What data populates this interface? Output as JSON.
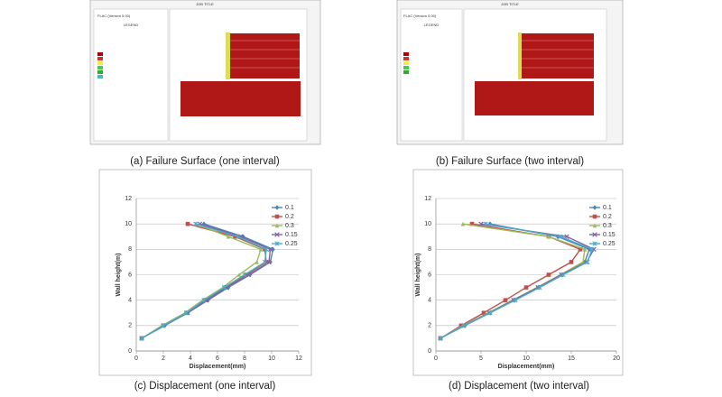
{
  "figures": [
    {
      "job_title": "JOB TITLE",
      "header": "FLAC (Version 5.00)",
      "legend_title": "LEGEND",
      "caption": "(a) Failure Surface (one interval)"
    },
    {
      "job_title": "JOB TITLE",
      "header": "FLAC (Version 5.00)",
      "legend_title": "LEGEND",
      "caption": "(b)  Failure Surface (two interval)"
    }
  ],
  "chart_data": [
    {
      "type": "line",
      "caption": "(c) Displacement (one interval)",
      "xlabel": "Displacement(mm)",
      "ylabel": "Wall height(m)",
      "xlim": [
        0,
        12
      ],
      "xticks": [
        0,
        2,
        4,
        6,
        8,
        10,
        12
      ],
      "ylim": [
        0,
        12
      ],
      "yticks": [
        0,
        2,
        4,
        6,
        8,
        10,
        12
      ],
      "grid": true,
      "legend": "upper right",
      "y": [
        1,
        2,
        3,
        4,
        5,
        6,
        7,
        8,
        9,
        10
      ],
      "series": [
        {
          "name": "0.1",
          "color": "#4f81bd",
          "marker": "diamond",
          "x": [
            0.4,
            2.1,
            3.8,
            5.3,
            6.8,
            8.4,
            9.9,
            10.1,
            7.9,
            5.0
          ]
        },
        {
          "name": "0.2",
          "color": "#c0504d",
          "marker": "square",
          "x": [
            0.4,
            2.0,
            3.7,
            5.1,
            6.6,
            8.1,
            9.6,
            9.5,
            7.3,
            3.8
          ]
        },
        {
          "name": "0.3",
          "color": "#9bbb59",
          "marker": "triangle",
          "x": [
            0.4,
            1.9,
            3.6,
            4.9,
            6.4,
            7.6,
            8.9,
            9.2,
            6.8,
            4.4
          ]
        },
        {
          "name": "0.15",
          "color": "#8064a2",
          "marker": "x",
          "x": [
            0.4,
            2.0,
            3.8,
            5.2,
            6.7,
            8.3,
            9.8,
            9.9,
            7.7,
            4.7
          ]
        },
        {
          "name": "0.25",
          "color": "#4bacc6",
          "marker": "star",
          "x": [
            0.4,
            2.0,
            3.7,
            5.0,
            6.5,
            8.0,
            9.5,
            9.6,
            7.5,
            4.4
          ]
        }
      ]
    },
    {
      "type": "line",
      "caption": "(d) Displacement (two interval)",
      "xlabel": "Displacement(mm)",
      "ylabel": "Wall height(m)",
      "xlim": [
        0,
        20
      ],
      "xticks": [
        0,
        5,
        10,
        15,
        20
      ],
      "ylim": [
        0,
        12
      ],
      "yticks": [
        0,
        2,
        4,
        6,
        8,
        10,
        12
      ],
      "grid": true,
      "legend": "upper right",
      "y": [
        1,
        2,
        3,
        4,
        5,
        6,
        7,
        8,
        9,
        10
      ],
      "series": [
        {
          "name": "0.1",
          "color": "#4f81bd",
          "marker": "diamond",
          "x": [
            0.5,
            3.2,
            6.0,
            8.7,
            11.4,
            14.0,
            16.5,
            17.0,
            13.5,
            6.0
          ]
        },
        {
          "name": "0.2",
          "color": "#c0504d",
          "marker": "square",
          "x": [
            0.5,
            2.8,
            5.3,
            7.7,
            10.0,
            12.5,
            15.0,
            16.0,
            12.5,
            4.0
          ]
        },
        {
          "name": "0.3",
          "color": "#9bbb59",
          "marker": "triangle",
          "x": [
            0.5,
            3.0,
            5.8,
            8.5,
            11.2,
            13.8,
            16.3,
            16.5,
            12.5,
            3.0
          ]
        },
        {
          "name": "0.15",
          "color": "#8064a2",
          "marker": "x",
          "x": [
            0.5,
            3.1,
            5.9,
            8.6,
            11.3,
            13.9,
            16.7,
            17.5,
            14.5,
            5.0
          ]
        },
        {
          "name": "0.25",
          "color": "#4bacc6",
          "marker": "star",
          "x": [
            0.5,
            3.1,
            6.0,
            8.8,
            11.5,
            14.1,
            16.8,
            17.3,
            13.8,
            5.5
          ]
        }
      ]
    }
  ]
}
